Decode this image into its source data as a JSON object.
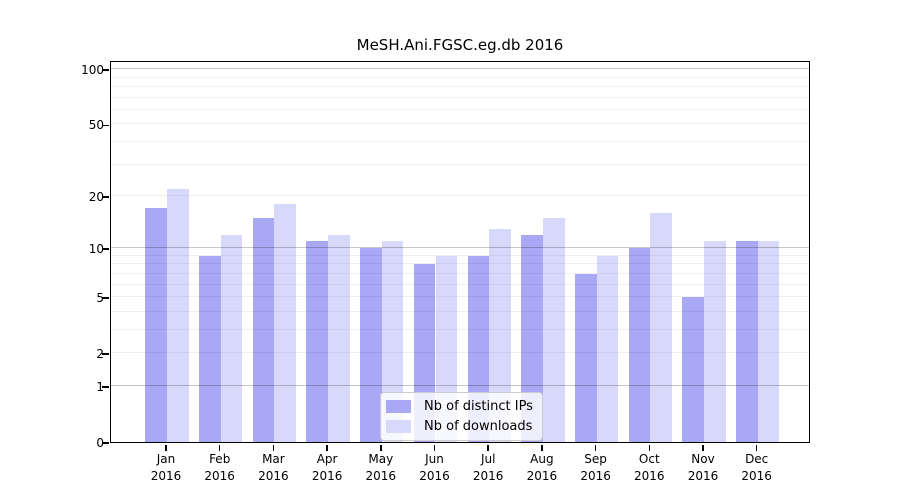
{
  "chart_data": {
    "type": "bar",
    "title": "MeSH.Ani.FGSC.eg.db 2016",
    "categories": [
      "Jan",
      "Feb",
      "Mar",
      "Apr",
      "May",
      "Jun",
      "Jul",
      "Aug",
      "Sep",
      "Oct",
      "Nov",
      "Dec"
    ],
    "category_year_line": "2016",
    "series": [
      {
        "name": "Nb of distinct IPs",
        "color": "#a8a8f5",
        "values": [
          17,
          9,
          15,
          11,
          10,
          8,
          9,
          12,
          7,
          10,
          5,
          11
        ]
      },
      {
        "name": "Nb of downloads",
        "color": "#d8d8fa",
        "values": [
          22,
          12,
          18,
          12,
          11,
          9,
          13,
          15,
          9,
          16,
          11,
          11
        ]
      }
    ],
    "y_axis": {
      "scale": "log1p",
      "tick_labels": [
        100,
        50,
        20,
        10,
        5,
        2,
        1,
        0
      ],
      "major_gridlines": [
        1,
        10,
        100
      ],
      "minor_gridlines": [
        2,
        3,
        4,
        5,
        6,
        7,
        8,
        9,
        20,
        30,
        40,
        50,
        60,
        70,
        80,
        90
      ],
      "top_value": 112
    },
    "legend": {
      "position": "bottom-center",
      "entries": [
        "Nb of distinct IPs",
        "Nb of downloads"
      ]
    },
    "grid": true,
    "frame_color": "#000000",
    "background_color": "#ffffff"
  }
}
